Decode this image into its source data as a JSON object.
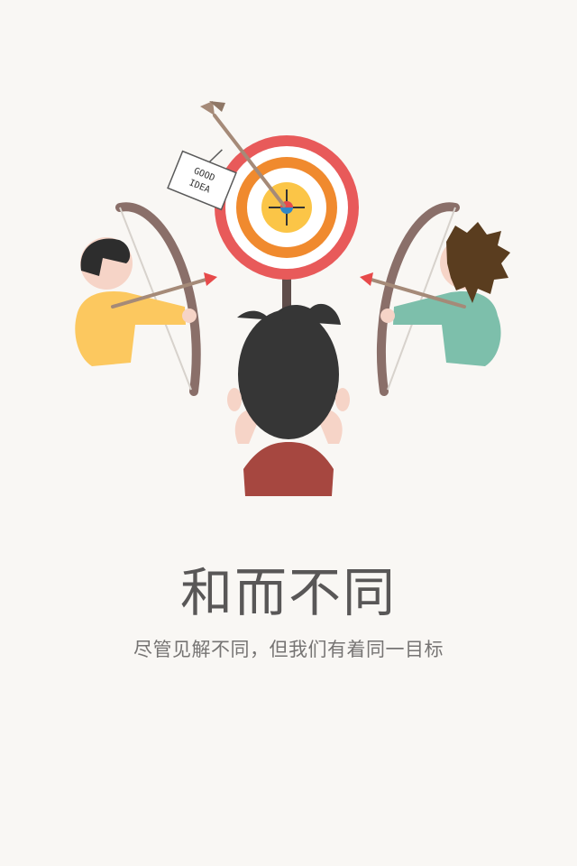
{
  "onboarding": {
    "title": "和而不同",
    "subtitle": "尽管见解不同，但我们有着同一目标",
    "sign_text": {
      "line1": "GOOD",
      "line2": "IDEA"
    }
  },
  "colors": {
    "background": "#f9f7f4",
    "title": "#595757",
    "subtitle": "#767473",
    "target_red": "#e85a5a",
    "target_orange": "#f08a2e",
    "target_yellow": "#fbc547",
    "left_shirt": "#fcc85f",
    "right_shirt": "#7dbfab",
    "center_shirt": "#a64740",
    "bow": "#8a6f69"
  },
  "icons": {
    "illustration": "archery-teamwork-illustration"
  }
}
